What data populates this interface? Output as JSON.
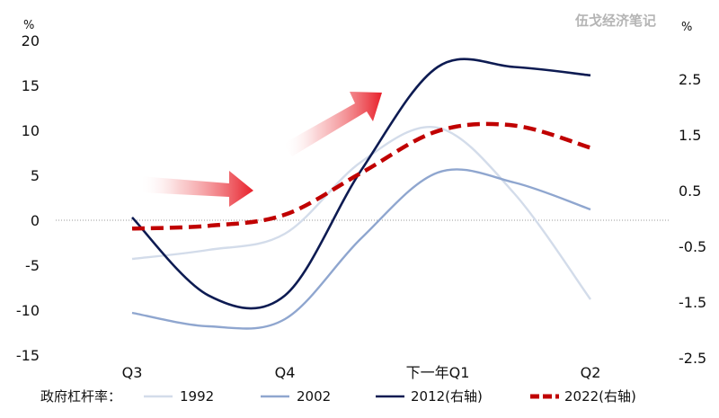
{
  "watermark": "伍戈经济笔记",
  "chart_data": {
    "type": "line",
    "categories": [
      "Q3",
      "Q4",
      "下一年Q1",
      "Q2"
    ],
    "left_unit": "%",
    "right_unit": "%",
    "left_axis": {
      "ylim": [
        -15,
        20
      ],
      "ticks": [
        "20",
        "15",
        "10",
        "5",
        "0",
        "-5",
        "-10",
        "-15"
      ],
      "tick_values": [
        20,
        15,
        10,
        5,
        0,
        -5,
        -10,
        -15
      ]
    },
    "right_axis": {
      "ylim": [
        -2.5,
        3.0
      ],
      "ticks": [
        "2.5",
        "1.5",
        "0.5",
        "-0.5",
        "-1.5",
        "-2.5"
      ],
      "tick_values": [
        2.5,
        1.5,
        0.5,
        -0.5,
        -1.5,
        -2.5
      ]
    },
    "legend_title": "政府杠杆率：",
    "series": [
      {
        "name": "1992",
        "axis": "left",
        "color": "#d3dcea",
        "style": "solid",
        "x": [
          0,
          0.5,
          1,
          1.5,
          2,
          2.5,
          3
        ],
        "values": [
          -4.3,
          -3.3,
          -1.5,
          6.5,
          10.3,
          3.0,
          -8.8
        ]
      },
      {
        "name": "2002",
        "axis": "left",
        "color": "#8fa6cf",
        "style": "solid",
        "x": [
          0,
          0.5,
          1,
          1.5,
          2,
          2.5,
          3
        ],
        "values": [
          -10.3,
          -11.8,
          -11.0,
          -2.0,
          5.3,
          4.2,
          1.2
        ]
      },
      {
        "name": "2012(右轴)",
        "axis": "right",
        "color": "#0d1b52",
        "style": "solid",
        "x": [
          0,
          0.5,
          1,
          1.5,
          2,
          2.5,
          3
        ],
        "values": [
          0.05,
          -1.35,
          -1.35,
          0.9,
          2.75,
          2.75,
          2.6
        ]
      },
      {
        "name": "2022(右轴)",
        "axis": "right",
        "color": "#c00000",
        "style": "dashed",
        "x": [
          0,
          0.5,
          1,
          1.5,
          2,
          2.5,
          3
        ],
        "values": [
          -0.15,
          -0.1,
          0.1,
          0.85,
          1.6,
          1.7,
          1.3
        ]
      }
    ],
    "zero_line": true,
    "legend_placement": "bottom",
    "annotations": [
      {
        "type": "arrow",
        "color": "#e8202a",
        "placement": "lower-left"
      },
      {
        "type": "arrow",
        "color": "#e8202a",
        "placement": "upper-middle"
      }
    ]
  }
}
